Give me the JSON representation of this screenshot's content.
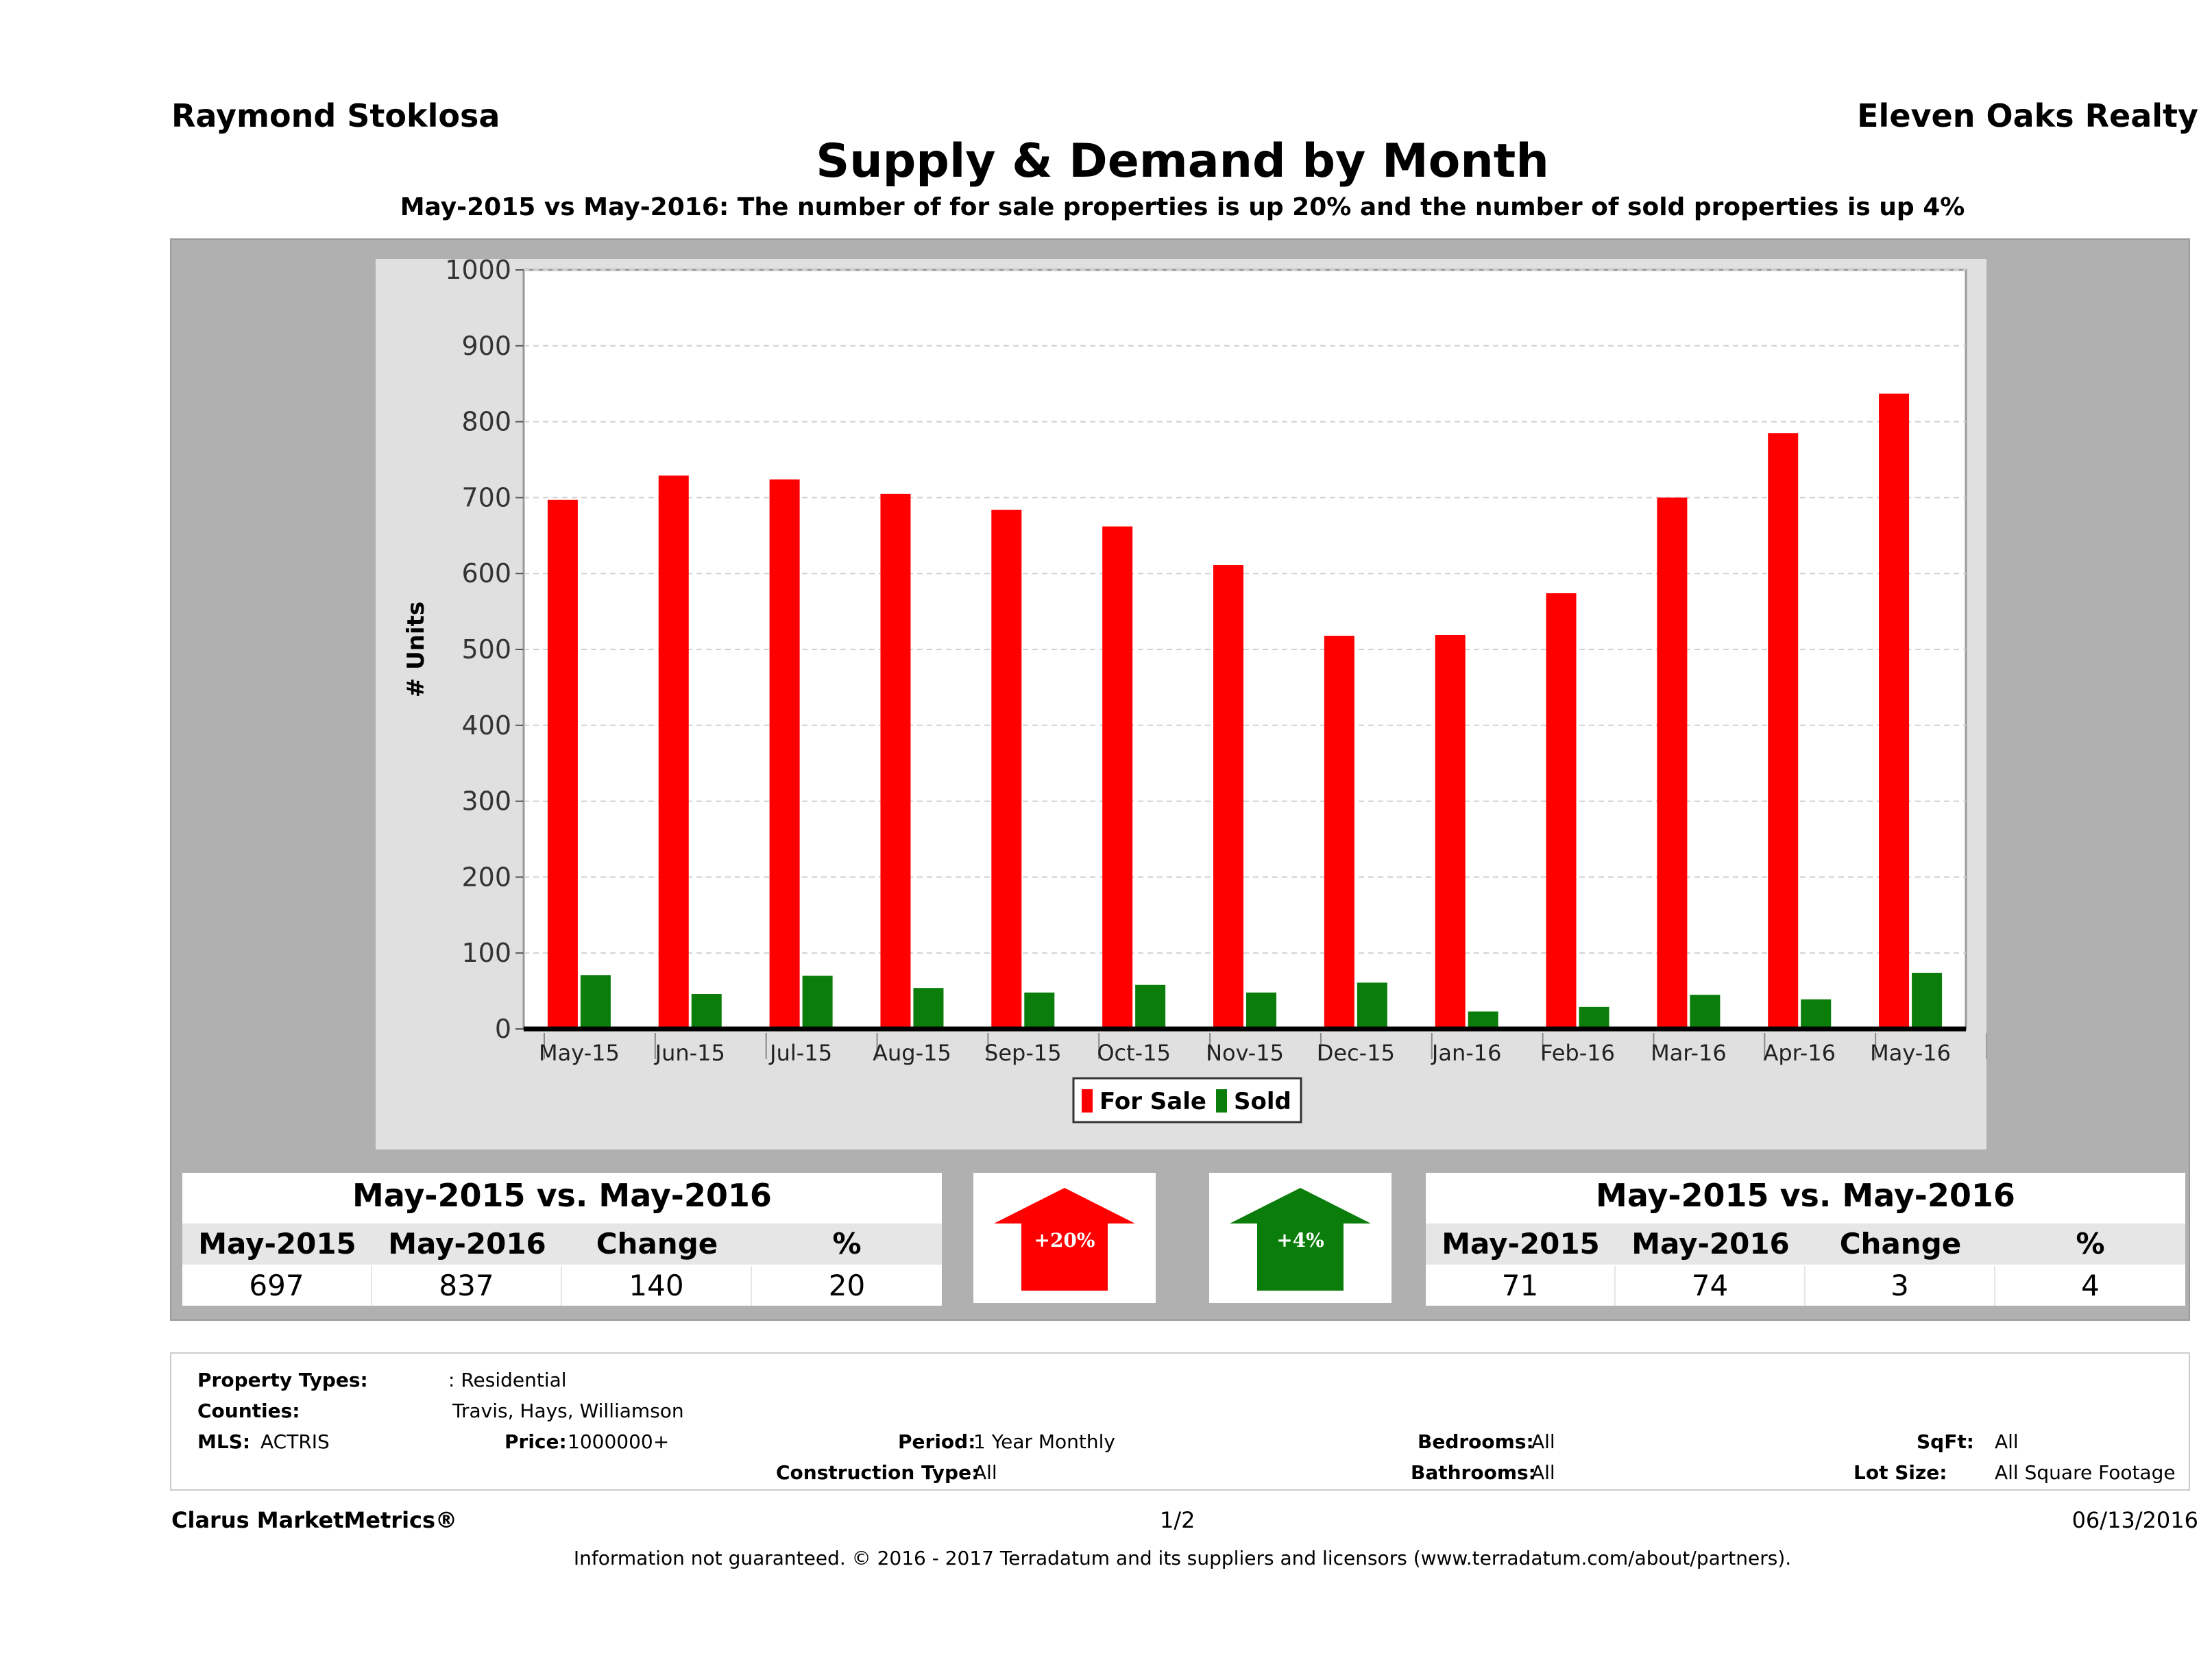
{
  "header": {
    "agent": "Raymond Stoklosa",
    "brokerage": "Eleven Oaks Realty",
    "title": "Supply & Demand by Month",
    "subtitle": "May-2015 vs May-2016: The number of for sale properties is up 20% and the number of sold properties is up 4%"
  },
  "chart_data": {
    "type": "bar",
    "ylabel": "# Units",
    "ylim": [
      0,
      1000
    ],
    "yticks": [
      "0",
      "100",
      "200",
      "300",
      "400",
      "500",
      "600",
      "700",
      "800",
      "900",
      "1000"
    ],
    "categories": [
      "May-15",
      "Jun-15",
      "Jul-15",
      "Aug-15",
      "Sep-15",
      "Oct-15",
      "Nov-15",
      "Dec-15",
      "Jan-16",
      "Feb-16",
      "Mar-16",
      "Apr-16",
      "May-16"
    ],
    "series": [
      {
        "name": "For Sale",
        "color": "#ff0000",
        "values": [
          697,
          729,
          724,
          705,
          684,
          662,
          611,
          518,
          519,
          574,
          700,
          785,
          837
        ]
      },
      {
        "name": "Sold",
        "color": "#0a7d0a",
        "values": [
          71,
          46,
          70,
          54,
          48,
          58,
          48,
          61,
          23,
          29,
          45,
          39,
          74
        ]
      }
    ],
    "grid": true,
    "legend": "bottom-center"
  },
  "for_sale_stats": {
    "title": "May-2015 vs. May-2016",
    "headers": [
      "May-2015",
      "May-2016",
      "Change",
      "%"
    ],
    "values": [
      "697",
      "837",
      "140",
      "20"
    ],
    "arrow_label": "+20%",
    "arrow_color": "#ff0000"
  },
  "sold_stats": {
    "title": "May-2015 vs. May-2016",
    "headers": [
      "May-2015",
      "May-2016",
      "Change",
      "%"
    ],
    "values": [
      "71",
      "74",
      "3",
      "4"
    ],
    "arrow_label": "+4%",
    "arrow_color": "#0a7d0a"
  },
  "criteria": {
    "property_types_label": "Property Types:",
    "property_types_value": ": Residential",
    "counties_label": "Counties:",
    "counties_value": "Travis, Hays, Williamson",
    "mls_label": "MLS:",
    "mls_value": "ACTRIS",
    "price_label": "Price:",
    "price_value": "1000000+",
    "period_label": "Period:",
    "period_value": "1 Year Monthly",
    "construction_label": "Construction Type:",
    "construction_value": "All",
    "bedrooms_label": "Bedrooms:",
    "bedrooms_value": "All",
    "bathrooms_label": "Bathrooms:",
    "bathrooms_value": "All",
    "sqft_label": "SqFt:",
    "sqft_value": "All",
    "lotsize_label": "Lot Size:",
    "lotsize_value": "All Square Footage"
  },
  "footer": {
    "brand": "Clarus MarketMetrics®",
    "page": "1/2",
    "date": "06/13/2016",
    "disclaimer": "Information not guaranteed. © 2016 - 2017 Terradatum and its suppliers and licensors (www.terradatum.com/about/partners)."
  }
}
